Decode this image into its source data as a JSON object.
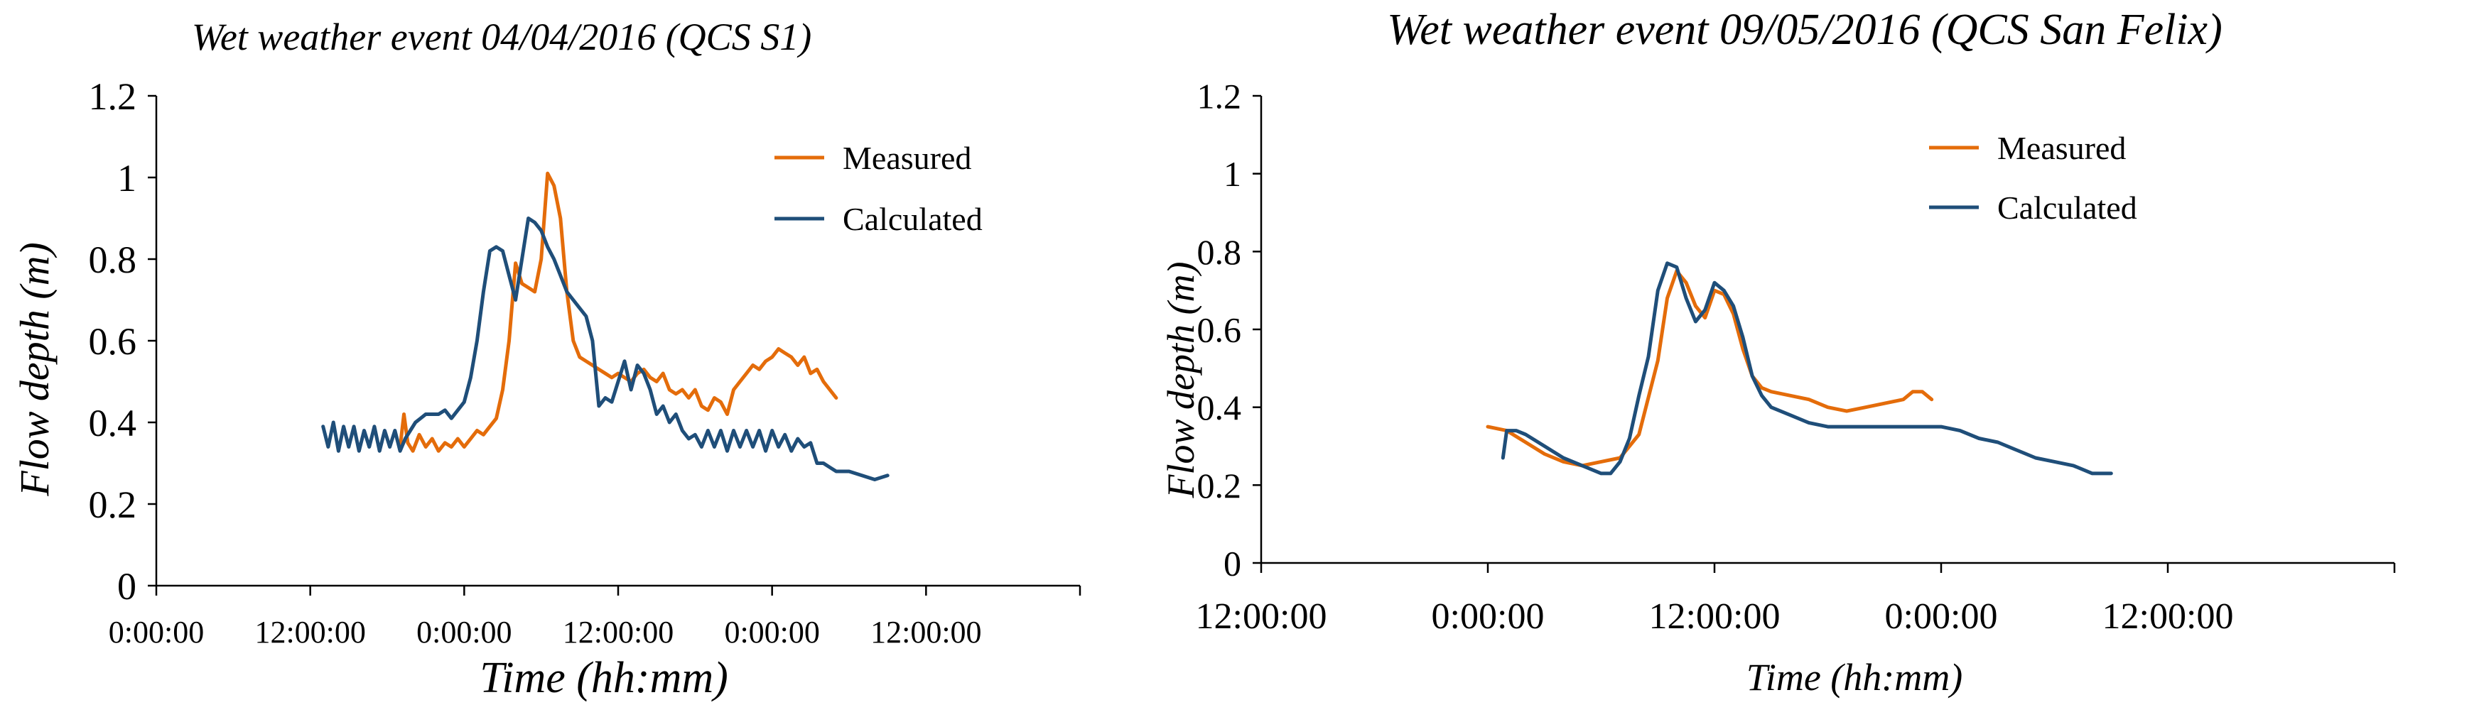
{
  "chart_data": [
    {
      "type": "line",
      "title": "Wet weather event 04/04/2016  (QCS S1)",
      "xlabel": "Time (hh:mm)",
      "ylabel": "Flow depth (m)",
      "x_unit": "hours",
      "xlim": [
        0,
        72
      ],
      "ylim": [
        0,
        1.2
      ],
      "grid": false,
      "legend_position": "top-right",
      "yticks": [
        0,
        0.2,
        0.4,
        0.6,
        0.8,
        1.0,
        1.2
      ],
      "ytick_labels": [
        "0",
        "0.2",
        "0.4",
        "0.6",
        "0.8",
        "1",
        "1.2"
      ],
      "xticks": [
        0,
        12,
        24,
        36,
        48,
        60,
        72
      ],
      "xtick_labels": [
        "0:00:00",
        "12:00:00",
        "0:00:00",
        "12:00:00",
        "0:00:00",
        "12:00:00",
        ""
      ],
      "series": [
        {
          "name": "Measured",
          "color": "#E46C0A",
          "x": [
            19,
            19.3,
            19.6,
            20,
            20.5,
            21,
            21.5,
            22,
            22.5,
            23,
            23.5,
            24,
            24.5,
            25,
            25.5,
            26,
            26.5,
            27,
            27.5,
            28,
            28.5,
            29,
            29.5,
            30,
            30.5,
            31,
            31.5,
            32,
            32.5,
            33,
            33.5,
            34,
            34.5,
            35,
            35.5,
            36,
            36.5,
            37,
            37.5,
            38,
            38.5,
            39,
            39.5,
            40,
            40.5,
            41,
            41.5,
            42,
            42.5,
            43,
            43.5,
            44,
            44.5,
            45,
            45.5,
            46,
            46.5,
            47,
            47.5,
            48,
            48.5,
            49,
            49.5,
            50,
            50.5,
            51,
            51.5,
            52,
            52.5,
            53
          ],
          "values": [
            0.34,
            0.42,
            0.35,
            0.33,
            0.37,
            0.34,
            0.36,
            0.33,
            0.35,
            0.34,
            0.36,
            0.34,
            0.36,
            0.38,
            0.37,
            0.39,
            0.41,
            0.48,
            0.6,
            0.79,
            0.74,
            0.73,
            0.72,
            0.8,
            1.01,
            0.98,
            0.9,
            0.72,
            0.6,
            0.56,
            0.55,
            0.54,
            0.53,
            0.52,
            0.51,
            0.52,
            0.51,
            0.5,
            0.52,
            0.53,
            0.51,
            0.5,
            0.52,
            0.48,
            0.47,
            0.48,
            0.46,
            0.48,
            0.44,
            0.43,
            0.46,
            0.45,
            0.42,
            0.48,
            0.5,
            0.52,
            0.54,
            0.53,
            0.55,
            0.56,
            0.58,
            0.57,
            0.56,
            0.54,
            0.56,
            0.52,
            0.53,
            0.5,
            0.48,
            0.46
          ]
        },
        {
          "name": "Calculated",
          "color": "#1F4E79",
          "x": [
            13,
            13.4,
            13.8,
            14.2,
            14.6,
            15,
            15.4,
            15.8,
            16.2,
            16.6,
            17,
            17.4,
            17.8,
            18.2,
            18.6,
            19,
            19.4,
            19.8,
            20.2,
            20.6,
            21,
            21.5,
            22,
            22.5,
            23,
            23.5,
            24,
            24.5,
            25,
            25.5,
            26,
            26.5,
            27,
            27.5,
            28,
            28.5,
            29,
            29.5,
            30,
            30.5,
            31,
            31.5,
            32,
            32.5,
            33,
            33.5,
            34,
            34.5,
            35,
            35.5,
            36,
            36.5,
            37,
            37.5,
            38,
            38.5,
            39,
            39.5,
            40,
            40.5,
            41,
            41.5,
            42,
            42.5,
            43,
            43.5,
            44,
            44.5,
            45,
            45.5,
            46,
            46.5,
            47,
            47.5,
            48,
            48.5,
            49,
            49.5,
            50,
            50.5,
            51,
            51.5,
            52,
            52.5,
            53,
            54,
            55,
            56,
            57
          ],
          "values": [
            0.39,
            0.34,
            0.4,
            0.33,
            0.39,
            0.34,
            0.39,
            0.33,
            0.38,
            0.34,
            0.39,
            0.33,
            0.38,
            0.34,
            0.38,
            0.33,
            0.36,
            0.38,
            0.4,
            0.41,
            0.42,
            0.42,
            0.42,
            0.43,
            0.41,
            0.43,
            0.45,
            0.51,
            0.6,
            0.72,
            0.82,
            0.83,
            0.82,
            0.76,
            0.7,
            0.8,
            0.9,
            0.89,
            0.87,
            0.83,
            0.8,
            0.76,
            0.72,
            0.7,
            0.68,
            0.66,
            0.6,
            0.44,
            0.46,
            0.45,
            0.5,
            0.55,
            0.48,
            0.54,
            0.52,
            0.48,
            0.42,
            0.44,
            0.4,
            0.42,
            0.38,
            0.36,
            0.37,
            0.34,
            0.38,
            0.34,
            0.38,
            0.33,
            0.38,
            0.34,
            0.38,
            0.34,
            0.38,
            0.33,
            0.38,
            0.34,
            0.37,
            0.33,
            0.36,
            0.34,
            0.35,
            0.3,
            0.3,
            0.29,
            0.28,
            0.28,
            0.27,
            0.26,
            0.27
          ]
        }
      ]
    },
    {
      "type": "line",
      "title": "Wet weather event 09/05/2016 (QCS San Felix)",
      "xlabel": "Time (hh:mm)",
      "ylabel": "Flow depth (m)",
      "x_unit": "hours",
      "xlim": [
        -12,
        48
      ],
      "ylim": [
        0,
        1.2
      ],
      "grid": false,
      "legend_position": "top-right",
      "yticks": [
        0,
        0.2,
        0.4,
        0.6,
        0.8,
        1.0,
        1.2
      ],
      "ytick_labels": [
        "0",
        "0.2",
        "0.4",
        "0.6",
        "0.8",
        "1",
        "1.2"
      ],
      "xticks": [
        -12,
        0,
        12,
        24,
        36,
        48
      ],
      "xtick_labels": [
        "12:00:00",
        "0:00:00",
        "12:00:00",
        "0:00:00",
        "12:00:00",
        ""
      ],
      "series": [
        {
          "name": "Measured",
          "color": "#E46C0A",
          "x": [
            0,
            1,
            2,
            3,
            4,
            5,
            6,
            7,
            8,
            9,
            9.5,
            10,
            10.5,
            11,
            11.5,
            12,
            12.5,
            13,
            13.5,
            14,
            14.5,
            15,
            16,
            17,
            18,
            19,
            20,
            21,
            22,
            22.5,
            23,
            23.5
          ],
          "values": [
            0.35,
            0.34,
            0.31,
            0.28,
            0.26,
            0.25,
            0.26,
            0.27,
            0.33,
            0.52,
            0.68,
            0.75,
            0.72,
            0.66,
            0.63,
            0.7,
            0.69,
            0.64,
            0.55,
            0.48,
            0.45,
            0.44,
            0.43,
            0.42,
            0.4,
            0.39,
            0.4,
            0.41,
            0.42,
            0.44,
            0.44,
            0.42
          ]
        },
        {
          "name": "Calculated",
          "color": "#1F4E79",
          "x": [
            0.8,
            1,
            1.5,
            2,
            3,
            4,
            5,
            6,
            6.5,
            7,
            7.5,
            8,
            8.5,
            9,
            9.5,
            10,
            10.5,
            11,
            11.5,
            12,
            12.5,
            13,
            13.5,
            14,
            14.5,
            15,
            16,
            17,
            18,
            19,
            20,
            21,
            22,
            23,
            24,
            25,
            26,
            27,
            28,
            29,
            30,
            31,
            32,
            33
          ],
          "values": [
            0.27,
            0.34,
            0.34,
            0.33,
            0.3,
            0.27,
            0.25,
            0.23,
            0.23,
            0.26,
            0.32,
            0.43,
            0.53,
            0.7,
            0.77,
            0.76,
            0.68,
            0.62,
            0.65,
            0.72,
            0.7,
            0.66,
            0.58,
            0.48,
            0.43,
            0.4,
            0.38,
            0.36,
            0.35,
            0.35,
            0.35,
            0.35,
            0.35,
            0.35,
            0.35,
            0.34,
            0.32,
            0.31,
            0.29,
            0.27,
            0.26,
            0.25,
            0.23,
            0.23
          ]
        }
      ]
    }
  ]
}
